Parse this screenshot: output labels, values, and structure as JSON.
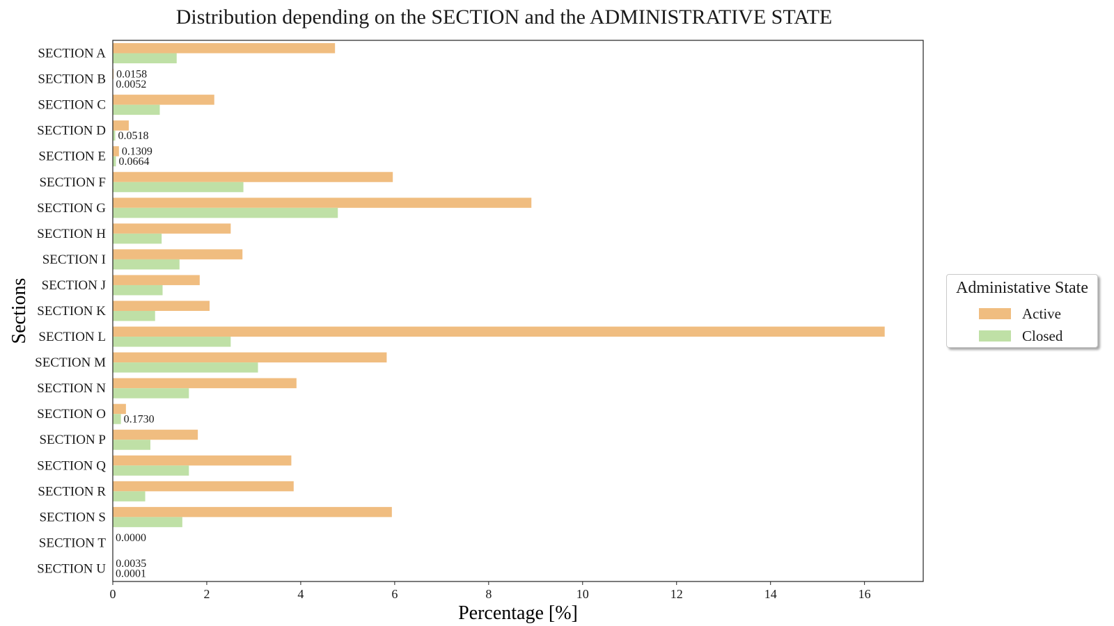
{
  "chart_data": {
    "type": "bar",
    "orientation": "horizontal",
    "title": "Distribution depending on the SECTION and the ADMINISTRATIVE STATE",
    "xlabel": "Percentage [%]",
    "ylabel": "Sections",
    "xlim": [
      0,
      17.25
    ],
    "xticks": [
      0,
      2,
      4,
      6,
      8,
      10,
      12,
      14,
      16
    ],
    "grid": false,
    "legend_title": "Administative State",
    "legend_position": "right",
    "categories": [
      "SECTION A",
      "SECTION B",
      "SECTION C",
      "SECTION D",
      "SECTION E",
      "SECTION F",
      "SECTION G",
      "SECTION H",
      "SECTION I",
      "SECTION J",
      "SECTION K",
      "SECTION L",
      "SECTION M",
      "SECTION N",
      "SECTION O",
      "SECTION P",
      "SECTION Q",
      "SECTION R",
      "SECTION S",
      "SECTION T",
      "SECTION U"
    ],
    "series": [
      {
        "name": "Active",
        "color": "#f0bd80",
        "values": [
          4.73,
          0.0158,
          2.16,
          0.34,
          0.1309,
          5.96,
          8.91,
          2.51,
          2.76,
          1.85,
          2.06,
          16.43,
          5.83,
          3.91,
          0.28,
          1.81,
          3.8,
          3.85,
          5.94,
          0.0,
          0.0035
        ]
      },
      {
        "name": "Closed",
        "color": "#bfe0a6",
        "values": [
          1.36,
          0.0052,
          1.0,
          0.0518,
          0.0664,
          2.78,
          4.79,
          1.04,
          1.42,
          1.06,
          0.9,
          2.51,
          3.09,
          1.62,
          0.173,
          0.8,
          1.62,
          0.69,
          1.48,
          0.0,
          0.0001
        ]
      }
    ],
    "data_labels": [
      {
        "category": "SECTION B",
        "series": "Active",
        "text": "0.0158"
      },
      {
        "category": "SECTION B",
        "series": "Closed",
        "text": "0.0052"
      },
      {
        "category": "SECTION D",
        "series": "Closed",
        "text": "0.0518"
      },
      {
        "category": "SECTION E",
        "series": "Active",
        "text": "0.1309"
      },
      {
        "category": "SECTION E",
        "series": "Closed",
        "text": "0.0664"
      },
      {
        "category": "SECTION O",
        "series": "Closed",
        "text": "0.1730"
      },
      {
        "category": "SECTION T",
        "series": "Active",
        "text": "0.0000"
      },
      {
        "category": "SECTION U",
        "series": "Active",
        "text": "0.0035"
      },
      {
        "category": "SECTION U",
        "series": "Closed",
        "text": "0.0001"
      }
    ]
  }
}
